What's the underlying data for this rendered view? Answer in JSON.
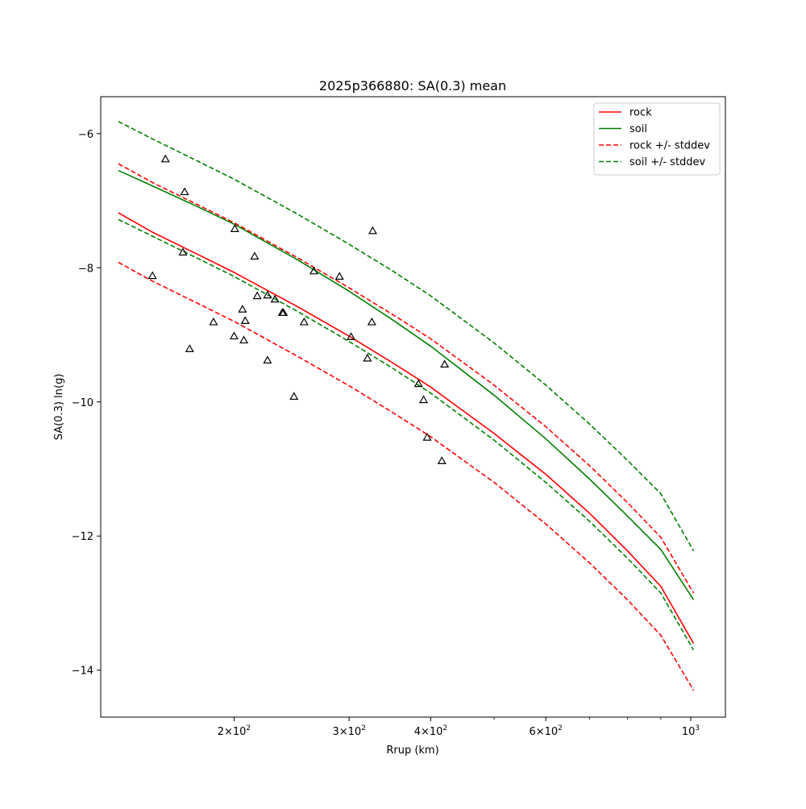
{
  "chart_data": {
    "type": "line",
    "title": "2025p366880: SA(0.3) mean",
    "xlabel": "Rrup (km)",
    "ylabel": "SA(0.3) ln(g)",
    "xscale": "log",
    "xlim": [
      125,
      1130
    ],
    "ylim": [
      -14.7,
      -5.45
    ],
    "xticks_major": [
      {
        "value": 200,
        "base": "2×10",
        "exp": "2"
      },
      {
        "value": 300,
        "base": "3×10",
        "exp": "2"
      },
      {
        "value": 400,
        "base": "4×10",
        "exp": "2"
      },
      {
        "value": 600,
        "base": "6×10",
        "exp": "2"
      },
      {
        "value": 1000,
        "base": "10",
        "exp": "3"
      }
    ],
    "xticks_minor": [
      500,
      700,
      800,
      900
    ],
    "yticks": [
      {
        "value": -6,
        "label": "−6"
      },
      {
        "value": -8,
        "label": "−8"
      },
      {
        "value": -10,
        "label": "−10"
      },
      {
        "value": -12,
        "label": "−12"
      },
      {
        "value": -14,
        "label": "−14"
      }
    ],
    "grid": false,
    "legend_position": "top-right",
    "series": [
      {
        "name": "rock",
        "style": "solid",
        "color": "#ff0000",
        "x": [
          133,
          150,
          175,
          200,
          250,
          300,
          350,
          400,
          500,
          600,
          700,
          800,
          900,
          1010
        ],
        "y": [
          -7.18,
          -7.47,
          -7.79,
          -8.07,
          -8.58,
          -9.02,
          -9.42,
          -9.78,
          -10.47,
          -11.08,
          -11.66,
          -12.22,
          -12.75,
          -13.6
        ]
      },
      {
        "name": "soil",
        "style": "solid",
        "color": "#008000",
        "x": [
          133,
          150,
          175,
          200,
          250,
          300,
          350,
          400,
          500,
          600,
          700,
          800,
          900,
          1010
        ],
        "y": [
          -6.55,
          -6.78,
          -7.08,
          -7.35,
          -7.88,
          -8.35,
          -8.78,
          -9.17,
          -9.9,
          -10.55,
          -11.15,
          -11.7,
          -12.2,
          -12.95
        ]
      },
      {
        "name": "rock +/- stddev",
        "style": "dashed",
        "color": "#ff0000",
        "x": [
          133,
          150,
          175,
          200,
          250,
          300,
          350,
          400,
          500,
          600,
          700,
          800,
          900,
          1010
        ],
        "y": [
          -6.45,
          -6.73,
          -7.05,
          -7.33,
          -7.85,
          -8.3,
          -8.7,
          -9.06,
          -9.75,
          -10.37,
          -10.95,
          -11.5,
          -12.02,
          -12.85
        ]
      },
      {
        "name": "rock +/- stddev",
        "style": "dashed",
        "color": "#ff0000",
        "legend": false,
        "x": [
          133,
          150,
          175,
          200,
          250,
          300,
          350,
          400,
          500,
          600,
          700,
          800,
          900,
          1010
        ],
        "y": [
          -7.92,
          -8.2,
          -8.52,
          -8.8,
          -9.32,
          -9.76,
          -10.16,
          -10.52,
          -11.2,
          -11.82,
          -12.4,
          -12.95,
          -13.48,
          -14.3
        ]
      },
      {
        "name": "soil +/- stddev",
        "style": "dashed",
        "color": "#008000",
        "x": [
          133,
          150,
          175,
          200,
          250,
          300,
          350,
          400,
          500,
          600,
          700,
          800,
          900,
          1010
        ],
        "y": [
          -5.82,
          -6.08,
          -6.4,
          -6.68,
          -7.2,
          -7.65,
          -8.05,
          -8.42,
          -9.12,
          -9.75,
          -10.33,
          -10.87,
          -11.37,
          -12.22
        ]
      },
      {
        "name": "soil +/- stddev",
        "style": "dashed",
        "color": "#008000",
        "legend": false,
        "x": [
          133,
          150,
          175,
          200,
          250,
          300,
          350,
          400,
          500,
          600,
          700,
          800,
          900,
          1010
        ],
        "y": [
          -7.28,
          -7.53,
          -7.85,
          -8.13,
          -8.65,
          -9.1,
          -9.5,
          -9.87,
          -10.57,
          -11.2,
          -11.78,
          -12.33,
          -12.85,
          -13.7
        ]
      }
    ],
    "observations": {
      "marker": "open-triangle",
      "color": "#000000",
      "points": [
        [
          157,
          -6.38
        ],
        [
          168,
          -6.87
        ],
        [
          200.5,
          -7.42
        ],
        [
          326,
          -7.45
        ],
        [
          167,
          -7.77
        ],
        [
          215,
          -7.83
        ],
        [
          150,
          -8.12
        ],
        [
          265,
          -8.05
        ],
        [
          290,
          -8.13
        ],
        [
          217,
          -8.42
        ],
        [
          225,
          -8.41
        ],
        [
          231,
          -8.47
        ],
        [
          206,
          -8.62
        ],
        [
          237,
          -8.67
        ],
        [
          238,
          -8.67
        ],
        [
          208,
          -8.79
        ],
        [
          186,
          -8.81
        ],
        [
          256,
          -8.81
        ],
        [
          325,
          -8.81
        ],
        [
          200,
          -9.02
        ],
        [
          302,
          -9.03
        ],
        [
          207,
          -9.08
        ],
        [
          171,
          -9.21
        ],
        [
          225,
          -9.38
        ],
        [
          320,
          -9.35
        ],
        [
          420,
          -9.44
        ],
        [
          383,
          -9.73
        ],
        [
          247,
          -9.92
        ],
        [
          390,
          -9.97
        ],
        [
          395,
          -10.53
        ],
        [
          416,
          -10.88
        ]
      ]
    }
  }
}
